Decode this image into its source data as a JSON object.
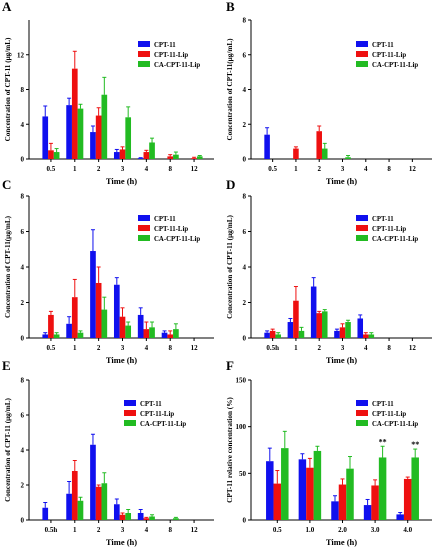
{
  "colors": {
    "CPT-11": "#1010ee",
    "CPT-11-Lip": "#ee1010",
    "CA-CPT-11-Lip": "#22bb22",
    "axis": "#000000"
  },
  "chart_data": [
    {
      "panel": "A",
      "type": "bar",
      "xlabel": "Time (h)",
      "ylabel": "Concentration of CPT-11 (μg/mL)",
      "categories": [
        "0.5",
        "1",
        "2",
        "3",
        "4",
        "8",
        "12"
      ],
      "yticks": [
        "0",
        "4",
        "8",
        "12"
      ],
      "ylim": [
        0,
        16
      ],
      "legend_position": "top-right",
      "series": [
        {
          "name": "CPT-11",
          "values": [
            4.9,
            6.2,
            3.1,
            0.8,
            0.1,
            0,
            0
          ],
          "errors": [
            1.2,
            0.8,
            0.7,
            0.3,
            0.05,
            0,
            0
          ]
        },
        {
          "name": "CPT-11-Lip",
          "values": [
            1.0,
            10.4,
            5.0,
            1.1,
            0.8,
            0.3,
            0.1
          ],
          "errors": [
            0.8,
            2.0,
            0.9,
            0.3,
            0.2,
            0.2,
            0.1
          ]
        },
        {
          "name": "CA-CPT-11-Lip",
          "values": [
            0.8,
            5.8,
            7.4,
            4.8,
            1.9,
            0.5,
            0.3
          ],
          "errors": [
            0.4,
            0.5,
            2.0,
            1.2,
            0.5,
            0.3,
            0.1
          ]
        }
      ],
      "annotations": []
    },
    {
      "panel": "B",
      "type": "bar",
      "xlabel": "Time (h)",
      "ylabel": "Concentration of CPT-11(μg/mL)",
      "categories": [
        "0.5",
        "1",
        "2",
        "3",
        "4",
        "8",
        "12"
      ],
      "yticks": [
        "0",
        "2",
        "4",
        "6",
        "8"
      ],
      "ylim": [
        0,
        8
      ],
      "legend_position": "top-right",
      "series": [
        {
          "name": "CPT-11",
          "values": [
            1.4,
            0,
            0,
            0,
            0,
            0,
            0
          ],
          "errors": [
            0.4,
            0,
            0,
            0,
            0,
            0,
            0
          ]
        },
        {
          "name": "CPT-11-Lip",
          "values": [
            0,
            0.6,
            1.6,
            0,
            0,
            0,
            0
          ],
          "errors": [
            0,
            0.1,
            0.3,
            0,
            0,
            0,
            0
          ]
        },
        {
          "name": "CA-CPT-11-Lip",
          "values": [
            0,
            0,
            0.6,
            0.1,
            0,
            0,
            0
          ],
          "errors": [
            0,
            0,
            0.3,
            0.1,
            0,
            0,
            0
          ]
        }
      ],
      "annotations": []
    },
    {
      "panel": "C",
      "type": "bar",
      "xlabel": "Time (h)",
      "ylabel": "Concentration of CPT-11(μg/mL)",
      "categories": [
        "0.5",
        "1",
        "2",
        "3",
        "4",
        "8",
        "12"
      ],
      "yticks": [
        "0",
        "2",
        "4",
        "6",
        "8"
      ],
      "ylim": [
        0,
        8
      ],
      "legend_position": "top-right",
      "series": [
        {
          "name": "CPT-11",
          "values": [
            0.2,
            0.8,
            4.9,
            3.0,
            1.3,
            0.3,
            0
          ],
          "errors": [
            0.1,
            0.4,
            1.2,
            0.4,
            0.4,
            0.1,
            0
          ]
        },
        {
          "name": "CPT-11-Lip",
          "values": [
            1.3,
            2.3,
            3.1,
            1.2,
            0.5,
            0.2,
            0
          ],
          "errors": [
            0.2,
            1.0,
            0.9,
            0.5,
            0.4,
            0.2,
            0
          ]
        },
        {
          "name": "CA-CPT-11-Lip",
          "values": [
            0.2,
            0.3,
            1.6,
            0.7,
            0.6,
            0.5,
            0
          ],
          "errors": [
            0.1,
            0.1,
            0.7,
            0.2,
            0.3,
            0.3,
            0
          ]
        }
      ],
      "annotations": []
    },
    {
      "panel": "D",
      "type": "bar",
      "xlabel": "Time (h)",
      "ylabel": "Concentration of CPT-11 (μg/mL)",
      "categories": [
        "0.5h",
        "1",
        "2",
        "3",
        "4",
        "8",
        "12"
      ],
      "yticks": [
        "0",
        "2",
        "4",
        "6",
        "8"
      ],
      "ylim": [
        0,
        8
      ],
      "legend_position": "top-right",
      "series": [
        {
          "name": "CPT-11",
          "values": [
            0.3,
            0.9,
            2.9,
            0.4,
            1.1,
            0,
            0
          ],
          "errors": [
            0.1,
            0.2,
            0.5,
            0.1,
            0.2,
            0,
            0
          ]
        },
        {
          "name": "CPT-11-Lip",
          "values": [
            0.4,
            2.1,
            1.4,
            0.6,
            0.2,
            0,
            0
          ],
          "errors": [
            0.1,
            0.8,
            0.1,
            0.2,
            0.1,
            0,
            0
          ]
        },
        {
          "name": "CA-CPT-11-Lip",
          "values": [
            0.2,
            0.4,
            1.5,
            0.9,
            0.2,
            0,
            0
          ],
          "errors": [
            0.1,
            0.2,
            0.1,
            0.1,
            0.1,
            0,
            0
          ]
        }
      ],
      "annotations": []
    },
    {
      "panel": "E",
      "type": "bar",
      "xlabel": "Time (h)",
      "ylabel": "Concentration of CPT-11 (μg/mL)",
      "categories": [
        "0.5h",
        "1",
        "2",
        "3",
        "4",
        "8",
        "12"
      ],
      "yticks": [
        "0",
        "2",
        "4",
        "6",
        "8"
      ],
      "ylim": [
        0,
        8
      ],
      "legend_position": "top-right",
      "series": [
        {
          "name": "CPT-11",
          "values": [
            0.7,
            1.5,
            4.3,
            0.9,
            0.4,
            0,
            0
          ],
          "errors": [
            0.3,
            0.7,
            0.6,
            0.3,
            0.2,
            0,
            0
          ]
        },
        {
          "name": "CPT-11-Lip",
          "values": [
            0,
            2.8,
            1.9,
            0.3,
            0.1,
            0,
            0
          ],
          "errors": [
            0,
            0.6,
            0.1,
            0.1,
            0.05,
            0,
            0
          ]
        },
        {
          "name": "CA-CPT-11-Lip",
          "values": [
            0,
            1.1,
            2.1,
            0.4,
            0.2,
            0.1,
            0
          ],
          "errors": [
            0,
            0.2,
            0.6,
            0.2,
            0.1,
            0.05,
            0
          ]
        }
      ],
      "annotations": []
    },
    {
      "panel": "F",
      "type": "bar",
      "xlabel": "Time (h)",
      "ylabel": "CPT-11 relative concentration (%)",
      "categories": [
        "0.5",
        "1.0",
        "2.0",
        "3.0",
        "4.0"
      ],
      "yticks": [
        "0",
        "50",
        "100",
        "150"
      ],
      "ylim": [
        0,
        150
      ],
      "legend_position": "top-right",
      "series": [
        {
          "name": "CPT-11",
          "values": [
            63,
            65,
            20,
            16,
            6
          ],
          "errors": [
            14,
            6,
            6,
            6,
            2
          ]
        },
        {
          "name": "CPT-11-Lip",
          "values": [
            39,
            56,
            38,
            37,
            44
          ],
          "errors": [
            14,
            10,
            6,
            6,
            2
          ]
        },
        {
          "name": "CA-CPT-11-Lip",
          "values": [
            77,
            74,
            55,
            67,
            67
          ],
          "errors": [
            18,
            5,
            13,
            12,
            9
          ]
        }
      ],
      "annotations": [
        {
          "category": "3.0",
          "text": "**"
        },
        {
          "category": "4.0",
          "text": "**"
        }
      ]
    }
  ]
}
